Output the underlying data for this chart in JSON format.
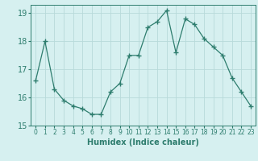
{
  "x": [
    0,
    1,
    2,
    3,
    4,
    5,
    6,
    7,
    8,
    9,
    10,
    11,
    12,
    13,
    14,
    15,
    16,
    17,
    18,
    19,
    20,
    21,
    22,
    23
  ],
  "y": [
    16.6,
    18.0,
    16.3,
    15.9,
    15.7,
    15.6,
    15.4,
    15.4,
    16.2,
    16.5,
    17.5,
    17.5,
    18.5,
    18.7,
    19.1,
    17.6,
    18.8,
    18.6,
    18.1,
    17.8,
    17.5,
    16.7,
    16.2,
    15.7
  ],
  "line_color": "#2e7d6e",
  "marker": "+",
  "marker_size": 4,
  "bg_color": "#d6f0f0",
  "grid_color": "#b8dada",
  "xlabel": "Humidex (Indice chaleur)",
  "xlim": [
    -0.5,
    23.5
  ],
  "ylim": [
    15.0,
    19.3
  ],
  "yticks": [
    15,
    16,
    17,
    18,
    19
  ],
  "xticks": [
    0,
    1,
    2,
    3,
    4,
    5,
    6,
    7,
    8,
    9,
    10,
    11,
    12,
    13,
    14,
    15,
    16,
    17,
    18,
    19,
    20,
    21,
    22,
    23
  ],
  "xlabel_fontsize": 7,
  "ytick_fontsize": 7,
  "xtick_fontsize": 5.5
}
